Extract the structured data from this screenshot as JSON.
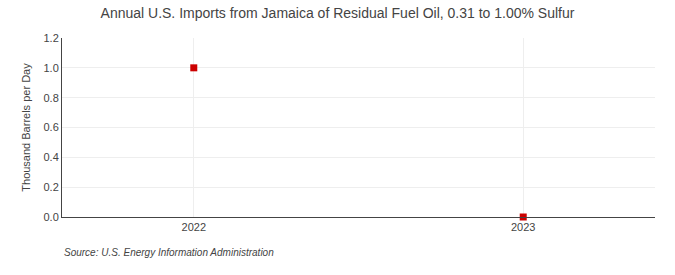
{
  "chart_data": {
    "type": "scatter",
    "title": "Annual U.S. Imports from Jamaica of Residual Fuel Oil, 0.31 to 1.00% Sulfur",
    "y_label": "Thousand Barrels per Day",
    "source": "Source: U.S. Energy Information Administration",
    "x": [
      2022,
      2023
    ],
    "values": [
      1.0,
      0.0
    ],
    "color": "#cc0000",
    "marker": "square",
    "xlim": [
      2021.6,
      2023.4
    ],
    "xticks": [
      2022,
      2023
    ],
    "ylim": [
      0.0,
      1.2
    ],
    "yticks": [
      {
        "value": 0.0,
        "label": "0.0"
      },
      0.2,
      0.4,
      0.6,
      0.8,
      {
        "value": 1.0,
        "label": "1.0"
      },
      1.2
    ],
    "grid": true
  }
}
